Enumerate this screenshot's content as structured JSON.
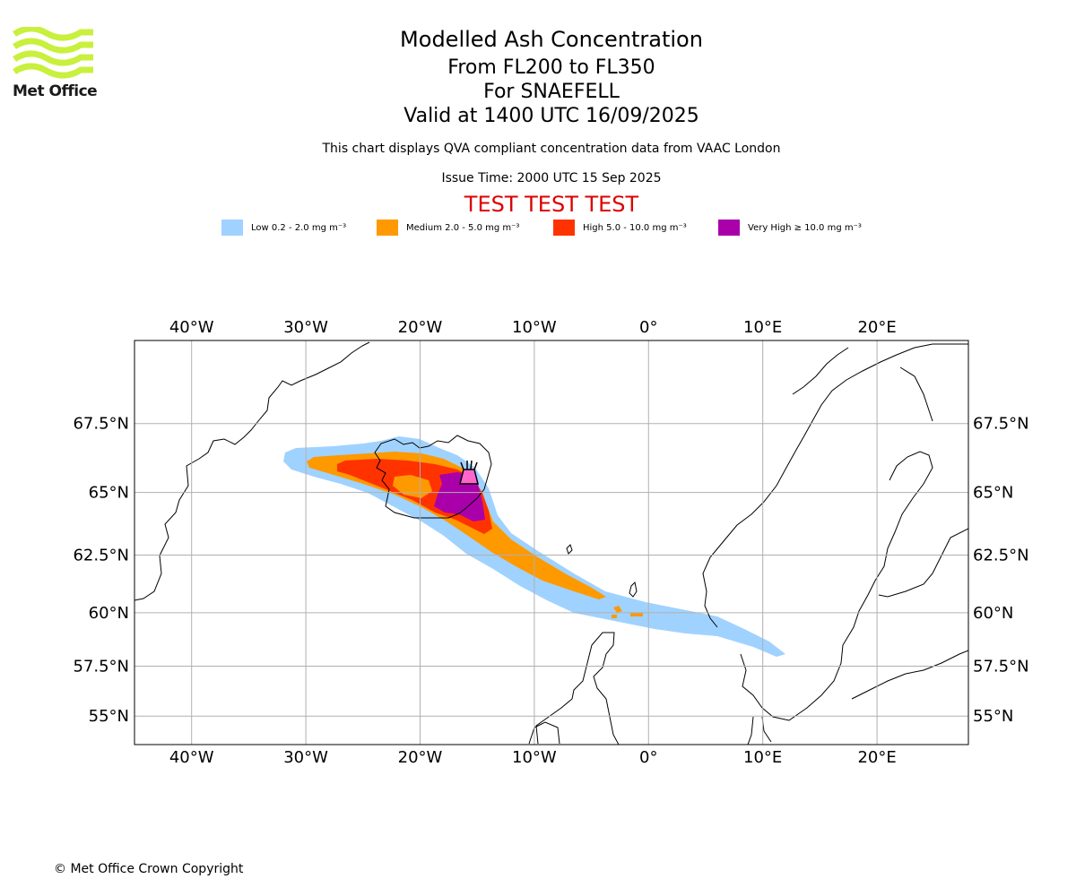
{
  "header": {
    "title": "Modelled Ash Concentration",
    "level_range": "From FL200 to FL350",
    "volcano": "For SNAEFELL",
    "valid_time": "Valid at 1400 UTC 16/09/2025",
    "compliance_note": "This chart displays QVA compliant concentration data from VAAC London",
    "issue_time": "Issue Time: 2000 UTC 15 Sep 2025",
    "test_banner": "TEST TEST TEST",
    "test_color": "#dd0000"
  },
  "logo": {
    "text": "Met Office",
    "icon": "met-office-wave-logo",
    "color": "#c8f03c"
  },
  "legend": [
    {
      "label": "Low 0.2 - 2.0 mg m⁻³",
      "color": "#a0d2ff"
    },
    {
      "label": "Medium 2.0 - 5.0 mg m⁻³",
      "color": "#ff9900"
    },
    {
      "label": "High 5.0 - 10.0 mg m⁻³",
      "color": "#ff3300"
    },
    {
      "label": "Very High ≥ 10.0 mg m⁻³",
      "color": "#aa00aa"
    }
  ],
  "map": {
    "lon_range": [
      -45,
      28
    ],
    "lat_range": [
      53.5,
      70.2
    ],
    "lon_ticks": [
      -40,
      -30,
      -20,
      -10,
      0,
      10,
      20
    ],
    "lon_labels": [
      "40°W",
      "30°W",
      "20°W",
      "10°W",
      "0°",
      "10°E",
      "20°E"
    ],
    "lat_ticks": [
      55,
      57.5,
      60,
      62.5,
      65,
      67.5
    ],
    "lat_labels": [
      "55°N",
      "57.5°N",
      "60°N",
      "62.5°N",
      "65°N",
      "67.5°N"
    ],
    "grid": true,
    "volcano_symbol": "volcano-icon",
    "volcano_location": {
      "lon": -15.6,
      "lat": 64.8
    }
  },
  "footer": {
    "copyright": "© Met Office Crown Copyright"
  }
}
